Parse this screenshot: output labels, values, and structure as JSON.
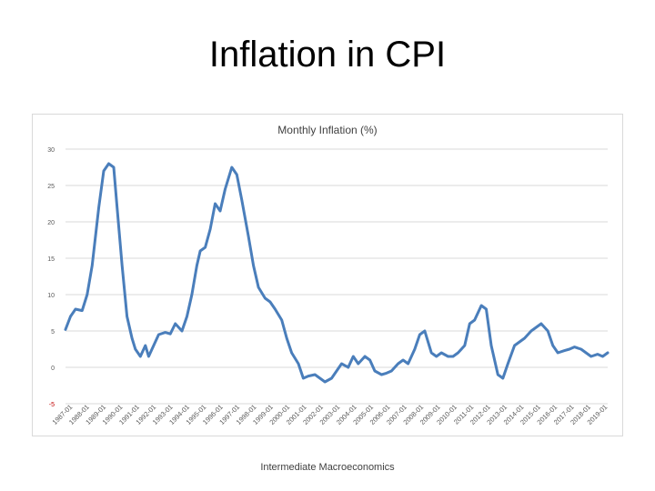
{
  "slide": {
    "title": "Inflation in CPI",
    "footer": "Intermediate Macroeconomics"
  },
  "colors": {
    "series": "#4a7ebb",
    "grid": "#d9d9d9",
    "tick_text": "#595959",
    "title_text": "#404040",
    "negative_tick": "#c00000"
  },
  "chart_data": {
    "type": "line",
    "title": "Monthly Inflation (%)",
    "xlabel": "",
    "ylabel": "",
    "ylim": [
      -5,
      30
    ],
    "yticks": [
      -5,
      0,
      5,
      10,
      15,
      20,
      25,
      30
    ],
    "ytick_labels": [
      "-5",
      "0",
      "5",
      "10",
      "15",
      "20",
      "25",
      "30"
    ],
    "grid": true,
    "categories": [
      "1987-01",
      "1988-01",
      "1989-01",
      "1990-01",
      "1991-01",
      "1992-01",
      "1993-01",
      "1994-01",
      "1995-01",
      "1996-01",
      "1997-01",
      "1998-01",
      "1999-01",
      "2000-01",
      "2001-01",
      "2002-01",
      "2003-01",
      "2004-01",
      "2005-01",
      "2006-01",
      "2007-01",
      "2008-01",
      "2009-01",
      "2010-01",
      "2011-01",
      "2012-01",
      "2013-01",
      "2014-01",
      "2015-01",
      "2016-01",
      "2017-01",
      "2018-01",
      "2019-01"
    ],
    "series": [
      {
        "name": "Monthly Inflation (%)",
        "x": [
          1987.0,
          1987.3,
          1987.6,
          1988.0,
          1988.3,
          1988.6,
          1989.0,
          1989.3,
          1989.6,
          1989.9,
          1990.1,
          1990.4,
          1990.7,
          1991.0,
          1991.2,
          1991.5,
          1991.8,
          1992.0,
          1992.3,
          1992.6,
          1993.0,
          1993.3,
          1993.6,
          1994.0,
          1994.3,
          1994.6,
          1994.9,
          1995.1,
          1995.4,
          1995.7,
          1996.0,
          1996.3,
          1996.6,
          1997.0,
          1997.3,
          1997.6,
          1998.0,
          1998.3,
          1998.6,
          1999.0,
          1999.3,
          1999.6,
          2000.0,
          2000.3,
          2000.6,
          2001.0,
          2001.3,
          2001.6,
          2002.0,
          2002.3,
          2002.6,
          2003.0,
          2003.3,
          2003.6,
          2004.0,
          2004.3,
          2004.6,
          2005.0,
          2005.3,
          2005.6,
          2006.0,
          2006.3,
          2006.6,
          2007.0,
          2007.3,
          2007.6,
          2008.0,
          2008.3,
          2008.6,
          2009.0,
          2009.3,
          2009.6,
          2010.0,
          2010.3,
          2010.6,
          2011.0,
          2011.3,
          2011.6,
          2012.0,
          2012.3,
          2012.6,
          2013.0,
          2013.3,
          2013.6,
          2014.0,
          2014.3,
          2014.6,
          2015.0,
          2015.3,
          2015.6,
          2016.0,
          2016.3,
          2016.6,
          2017.0,
          2017.3,
          2017.6,
          2018.0,
          2018.3,
          2018.6,
          2019.0,
          2019.3,
          2019.6
        ],
        "values": [
          5.2,
          7.0,
          8.0,
          7.8,
          10.0,
          14.0,
          22.0,
          27.0,
          28.0,
          27.5,
          22.0,
          14.0,
          7.0,
          4.0,
          2.5,
          1.5,
          3.0,
          1.5,
          3.0,
          4.5,
          4.8,
          4.6,
          6.0,
          5.0,
          7.0,
          10.0,
          14.0,
          16.0,
          16.5,
          19.0,
          22.5,
          21.5,
          24.5,
          27.5,
          26.5,
          23.0,
          18.0,
          14.0,
          11.0,
          9.5,
          9.0,
          8.0,
          6.5,
          4.0,
          2.0,
          0.5,
          -1.5,
          -1.2,
          -1.0,
          -1.5,
          -2.0,
          -1.5,
          -0.5,
          0.5,
          0.0,
          1.5,
          0.5,
          1.5,
          1.0,
          -0.5,
          -1.0,
          -0.8,
          -0.5,
          0.5,
          1.0,
          0.5,
          2.5,
          4.5,
          5.0,
          2.0,
          1.5,
          2.0,
          1.5,
          1.5,
          2.0,
          3.0,
          6.0,
          6.5,
          8.5,
          8.0,
          3.0,
          -1.0,
          -1.5,
          0.5,
          3.0,
          3.5,
          4.0,
          5.0,
          5.5,
          6.0,
          5.0,
          3.0,
          2.0,
          2.3,
          2.5,
          2.8,
          2.5,
          2.0,
          1.5,
          1.8,
          1.5,
          2.0
        ]
      }
    ]
  }
}
